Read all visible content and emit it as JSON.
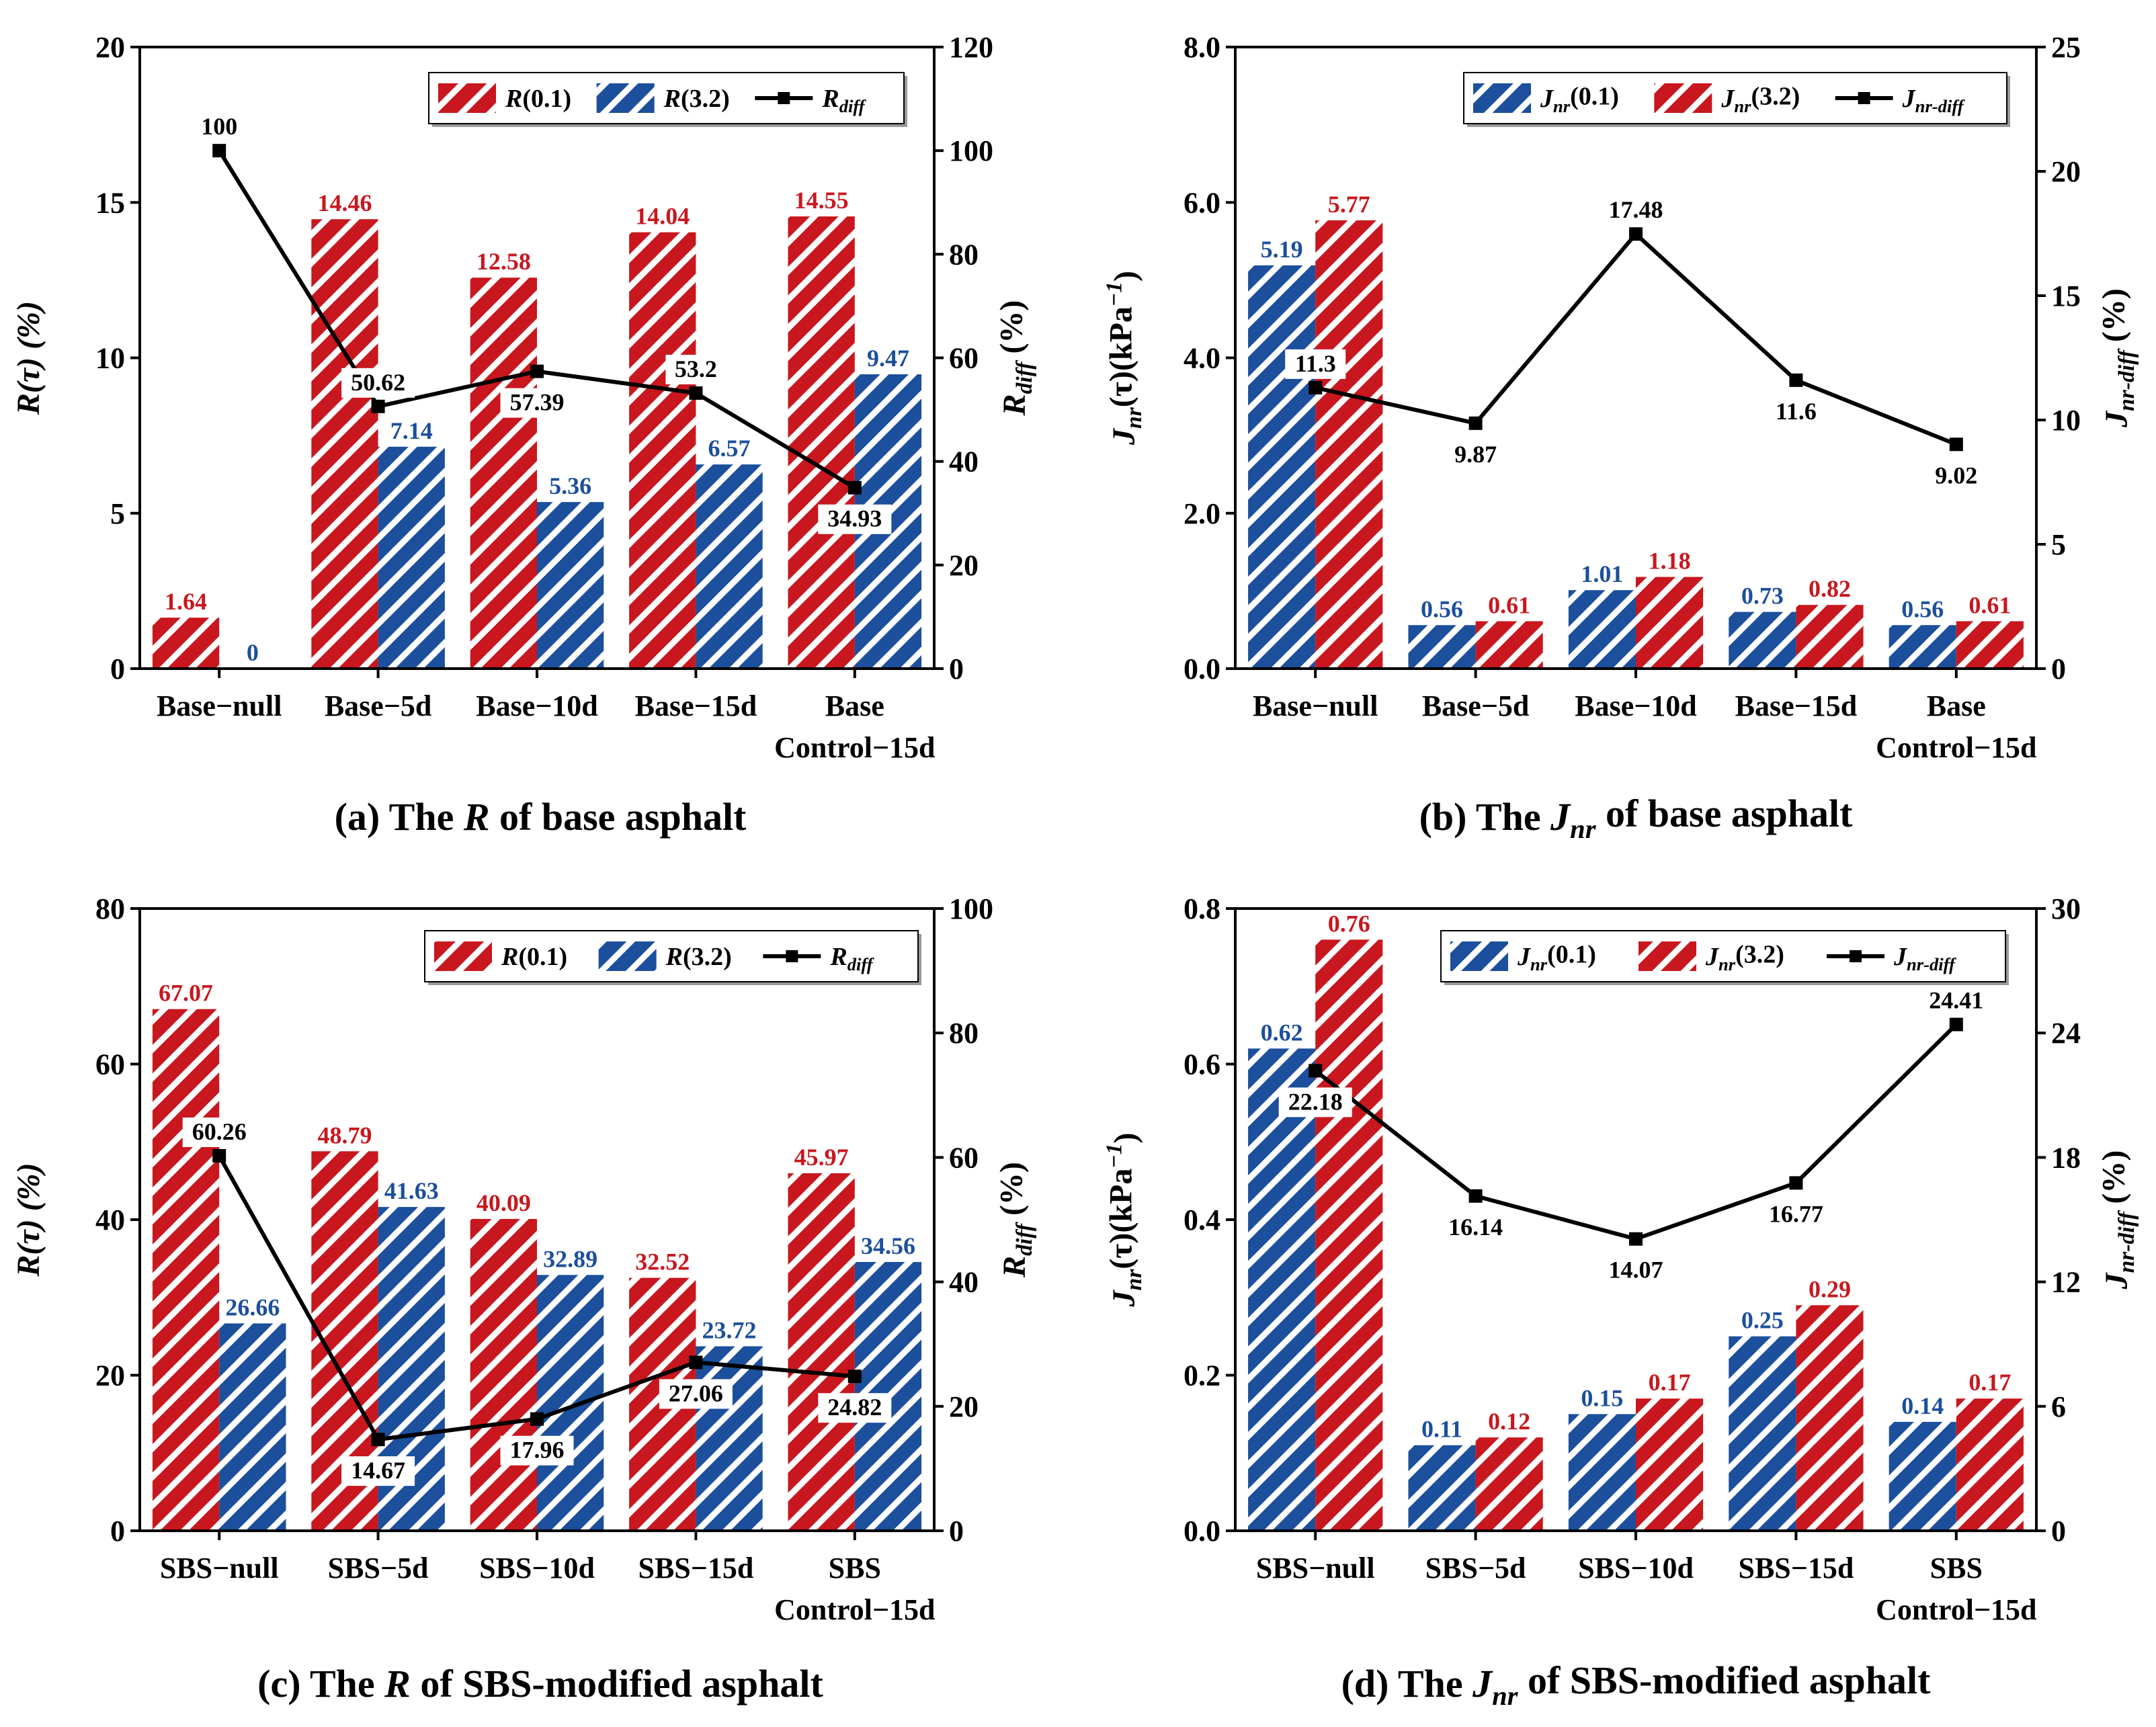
{
  "colors": {
    "red": "#c8171e",
    "blue": "#1c4f9c",
    "line": "#000000"
  },
  "chart_data": [
    {
      "type": "bar+line",
      "panel": "a",
      "caption": {
        "pre": "(a) The ",
        "sym": "R",
        "sub": "",
        "post": " of base asphalt"
      },
      "categories": [
        [
          "Base−null"
        ],
        [
          "Base−5d"
        ],
        [
          "Base−10d"
        ],
        [
          "Base−15d"
        ],
        [
          "Base",
          "Control−15d"
        ]
      ],
      "ylabel": {
        "sym": "R(τ) (%)"
      },
      "y2label": {
        "sym": "R",
        "sub": "diff",
        "post": " (%)"
      },
      "ylim": [
        0,
        20
      ],
      "yticks": [
        0,
        5,
        10,
        15,
        20
      ],
      "ytick_labels": [
        "0",
        "5",
        "10",
        "15",
        "20"
      ],
      "y2lim": [
        0,
        120
      ],
      "y2ticks": [
        0,
        20,
        40,
        60,
        80,
        100,
        120
      ],
      "y2tick_labels": [
        "0",
        "20",
        "40",
        "60",
        "80",
        "100",
        "120"
      ],
      "series": [
        {
          "name": "R(0.1)",
          "legend": {
            "sym": "R",
            "sub": "",
            "post": "(0.1)"
          },
          "color": "red",
          "values": [
            1.64,
            14.46,
            12.58,
            14.04,
            14.55
          ],
          "labels": [
            "1.64",
            "14.46",
            "12.58",
            "14.04",
            "14.55"
          ]
        },
        {
          "name": "R(3.2)",
          "legend": {
            "sym": "R",
            "sub": "",
            "post": "(3.2)"
          },
          "color": "blue",
          "values": [
            0,
            7.14,
            5.36,
            6.57,
            9.47
          ],
          "labels": [
            "0",
            "7.14",
            "5.36",
            "6.57",
            "9.47"
          ]
        }
      ],
      "line": {
        "name": "R_diff",
        "legend": {
          "sym": "R",
          "sub": "diff",
          "post": ""
        },
        "values": [
          100,
          50.62,
          57.39,
          53.2,
          34.93
        ],
        "labels": [
          "100",
          "50.62",
          "57.39",
          "53.2",
          "34.93"
        ],
        "label_pos": [
          "above",
          "above",
          "below",
          "above",
          "below"
        ]
      }
    },
    {
      "type": "bar+line",
      "panel": "b",
      "caption": {
        "pre": "(b) The ",
        "sym": "J",
        "sub": "nr",
        "post": " of base asphalt"
      },
      "categories": [
        [
          "Base−null"
        ],
        [
          "Base−5d"
        ],
        [
          "Base−10d"
        ],
        [
          "Base−15d"
        ],
        [
          "Base",
          "Control−15d"
        ]
      ],
      "ylabel": {
        "sym": "J",
        "sub": "nr",
        "post": "(τ)(kPa",
        "sup": "−1",
        "end": ")"
      },
      "y2label": {
        "sym": "J",
        "sub": "nr-diff",
        "post": " (%)"
      },
      "ylim": [
        0,
        8
      ],
      "yticks": [
        0,
        2,
        4,
        6,
        8
      ],
      "ytick_labels": [
        "0.0",
        "2.0",
        "4.0",
        "6.0",
        "8.0"
      ],
      "y2lim": [
        0,
        25
      ],
      "y2ticks": [
        0,
        5,
        10,
        15,
        20,
        25
      ],
      "y2tick_labels": [
        "0",
        "5",
        "10",
        "15",
        "20",
        "25"
      ],
      "series": [
        {
          "name": "Jnr(0.1)",
          "legend": {
            "sym": "J",
            "sub": "nr",
            "post": "(0.1)"
          },
          "color": "blue",
          "values": [
            5.19,
            0.56,
            1.01,
            0.73,
            0.56
          ],
          "labels": [
            "5.19",
            "0.56",
            "1.01",
            "0.73",
            "0.56"
          ]
        },
        {
          "name": "Jnr(3.2)",
          "legend": {
            "sym": "J",
            "sub": "nr",
            "post": "(3.2)"
          },
          "color": "red",
          "values": [
            5.77,
            0.61,
            1.18,
            0.82,
            0.61
          ],
          "labels": [
            "5.77",
            "0.61",
            "1.18",
            "0.82",
            "0.61"
          ]
        }
      ],
      "line": {
        "name": "Jnr-diff",
        "legend": {
          "sym": "J",
          "sub": "nr-diff",
          "post": ""
        },
        "values": [
          11.3,
          9.87,
          17.48,
          11.6,
          9.02
        ],
        "labels": [
          "11.3",
          "9.87",
          "17.48",
          "11.6",
          "9.02"
        ],
        "label_pos": [
          "above",
          "below",
          "above",
          "below",
          "below"
        ]
      }
    },
    {
      "type": "bar+line",
      "panel": "c",
      "caption": {
        "pre": "(c) The ",
        "sym": "R",
        "sub": "",
        "post": " of SBS-modified asphalt"
      },
      "categories": [
        [
          "SBS−null"
        ],
        [
          "SBS−5d"
        ],
        [
          "SBS−10d"
        ],
        [
          "SBS−15d"
        ],
        [
          "SBS",
          "Control−15d"
        ]
      ],
      "ylabel": {
        "sym": "R(τ) (%)"
      },
      "y2label": {
        "sym": "R",
        "sub": "diff",
        "post": " (%)"
      },
      "ylim": [
        0,
        80
      ],
      "yticks": [
        0,
        20,
        40,
        60,
        80
      ],
      "ytick_labels": [
        "0",
        "20",
        "40",
        "60",
        "80"
      ],
      "y2lim": [
        0,
        100
      ],
      "y2ticks": [
        0,
        20,
        40,
        60,
        80,
        100
      ],
      "y2tick_labels": [
        "0",
        "20",
        "40",
        "60",
        "80",
        "100"
      ],
      "series": [
        {
          "name": "R(0.1)",
          "legend": {
            "sym": "R",
            "sub": "",
            "post": "(0.1)"
          },
          "color": "red",
          "values": [
            67.07,
            48.79,
            40.09,
            32.52,
            45.97
          ],
          "labels": [
            "67.07",
            "48.79",
            "40.09",
            "32.52",
            "45.97"
          ]
        },
        {
          "name": "R(3.2)",
          "legend": {
            "sym": "R",
            "sub": "",
            "post": "(3.2)"
          },
          "color": "blue",
          "values": [
            26.66,
            41.63,
            32.89,
            23.72,
            34.56
          ],
          "labels": [
            "26.66",
            "41.63",
            "32.89",
            "23.72",
            "34.56"
          ]
        }
      ],
      "line": {
        "name": "R_diff",
        "legend": {
          "sym": "R",
          "sub": "diff",
          "post": ""
        },
        "values": [
          60.26,
          14.67,
          17.96,
          27.06,
          24.82
        ],
        "labels": [
          "60.26",
          "14.67",
          "17.96",
          "27.06",
          "24.82"
        ],
        "label_pos": [
          "above",
          "below",
          "below",
          "below",
          "below"
        ]
      }
    },
    {
      "type": "bar+line",
      "panel": "d",
      "caption": {
        "pre": "(d) The ",
        "sym": "J",
        "sub": "nr",
        "post": " of SBS-modified asphalt"
      },
      "categories": [
        [
          "SBS−null"
        ],
        [
          "SBS−5d"
        ],
        [
          "SBS−10d"
        ],
        [
          "SBS−15d"
        ],
        [
          "SBS",
          "Control−15d"
        ]
      ],
      "ylabel": {
        "sym": "J",
        "sub": "nr",
        "post": "(τ)(kPa",
        "sup": "−1",
        "end": ")"
      },
      "y2label": {
        "sym": "J",
        "sub": "nr-diff",
        "post": " (%)"
      },
      "ylim": [
        0,
        0.8
      ],
      "yticks": [
        0,
        0.2,
        0.4,
        0.6,
        0.8
      ],
      "ytick_labels": [
        "0.0",
        "0.2",
        "0.4",
        "0.6",
        "0.8"
      ],
      "y2lim": [
        0,
        30
      ],
      "y2ticks": [
        0,
        6,
        12,
        18,
        24,
        30
      ],
      "y2tick_labels": [
        "0",
        "6",
        "12",
        "18",
        "24",
        "30"
      ],
      "series": [
        {
          "name": "Jnr(0.1)",
          "legend": {
            "sym": "J",
            "sub": "nr",
            "post": "(0.1)"
          },
          "color": "blue",
          "values": [
            0.62,
            0.11,
            0.15,
            0.25,
            0.14
          ],
          "labels": [
            "0.62",
            "0.11",
            "0.15",
            "0.25",
            "0.14"
          ]
        },
        {
          "name": "Jnr(3.2)",
          "legend": {
            "sym": "J",
            "sub": "nr",
            "post": "(3.2)"
          },
          "color": "red",
          "values": [
            0.76,
            0.12,
            0.17,
            0.29,
            0.17
          ],
          "labels": [
            "0.76",
            "0.12",
            "0.17",
            "0.29",
            "0.17"
          ]
        }
      ],
      "line": {
        "name": "Jnr-diff",
        "legend": {
          "sym": "J",
          "sub": "nr-diff",
          "post": ""
        },
        "values": [
          22.18,
          16.14,
          14.07,
          16.77,
          24.41
        ],
        "labels": [
          "22.18",
          "16.14",
          "14.07",
          "16.77",
          "24.41"
        ],
        "label_pos": [
          "below",
          "below",
          "below",
          "below",
          "above"
        ]
      }
    }
  ]
}
